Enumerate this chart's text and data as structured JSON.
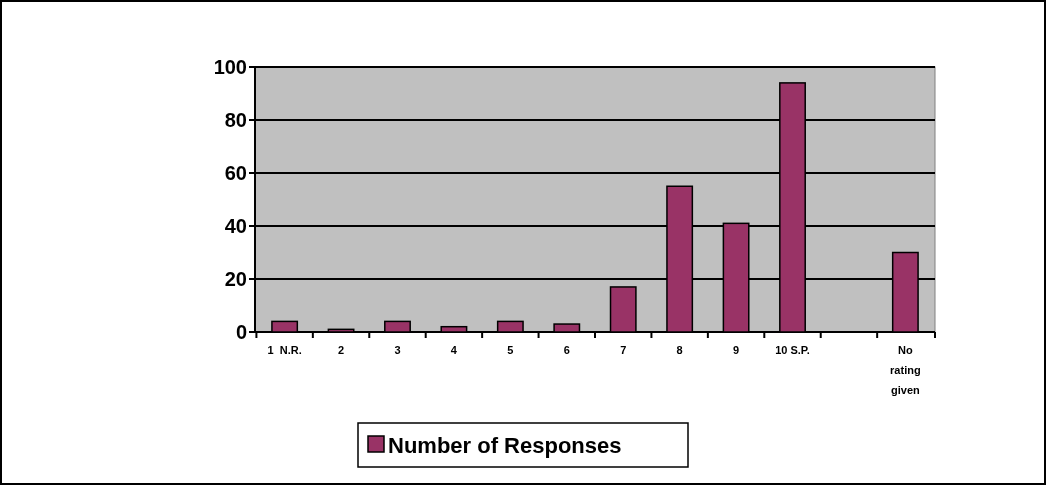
{
  "chart_data": {
    "type": "bar",
    "categories": [
      "1  N.R.",
      "2",
      "3",
      "4",
      "5",
      "6",
      "7",
      "8",
      "9",
      "10 S.P.",
      null,
      "No rating given"
    ],
    "series": [
      {
        "name": "Number of Responses",
        "color": "#993366",
        "values": [
          4,
          1,
          4,
          2,
          4,
          3,
          17,
          55,
          41,
          94,
          null,
          30
        ]
      }
    ],
    "ylim": [
      0,
      100
    ],
    "yticks": [
      0,
      20,
      40,
      60,
      80,
      100
    ],
    "grid": "y",
    "legend": "bottom"
  }
}
